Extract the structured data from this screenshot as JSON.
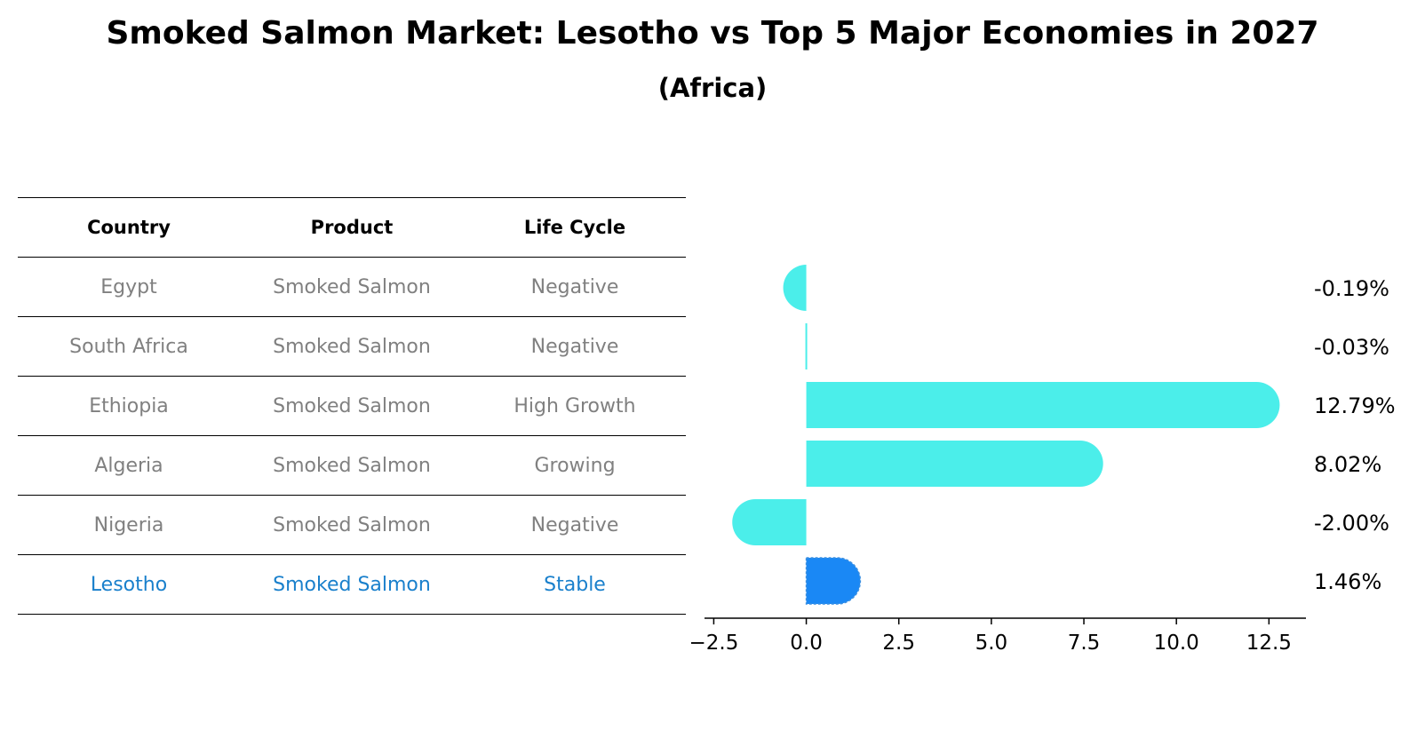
{
  "title": "Smoked Salmon Market: Lesotho vs Top 5 Major Economies in 2027",
  "subtitle": "(Africa)",
  "table": {
    "headers": [
      "Country",
      "Product",
      "Life Cycle"
    ],
    "rows": [
      {
        "country": "Egypt",
        "product": "Smoked Salmon",
        "life_cycle": "Negative"
      },
      {
        "country": "South Africa",
        "product": "Smoked Salmon",
        "life_cycle": "Negative"
      },
      {
        "country": "Ethiopia",
        "product": "Smoked Salmon",
        "life_cycle": "High Growth"
      },
      {
        "country": "Algeria",
        "product": "Smoked Salmon",
        "life_cycle": "Growing"
      },
      {
        "country": "Nigeria",
        "product": "Smoked Salmon",
        "life_cycle": "Negative"
      },
      {
        "country": "Lesotho",
        "product": "Smoked Salmon",
        "life_cycle": "Stable"
      }
    ]
  },
  "chart_data": {
    "type": "bar",
    "orientation": "horizontal",
    "categories": [
      "Egypt",
      "South Africa",
      "Ethiopia",
      "Algeria",
      "Nigeria",
      "Lesotho"
    ],
    "values": [
      -0.19,
      -0.03,
      12.79,
      8.02,
      -2.0,
      1.46
    ],
    "labels": [
      "-0.19%",
      "-0.03%",
      "12.79%",
      "8.02%",
      "-2.00%",
      "1.46%"
    ],
    "highlight": "Lesotho",
    "xlim": [
      -2.75,
      13.5
    ],
    "xticks": [
      -2.5,
      0.0,
      2.5,
      5.0,
      7.5,
      10.0,
      12.5
    ],
    "xtick_labels": [
      "−2.5",
      "0.0",
      "2.5",
      "5.0",
      "7.5",
      "10.0",
      "12.5"
    ],
    "grid": false
  },
  "colors": {
    "bar": "#4beeea",
    "highlight_bar": "#1a88f5",
    "highlight_text": "#1a80cc",
    "muted_text": "#808080"
  }
}
